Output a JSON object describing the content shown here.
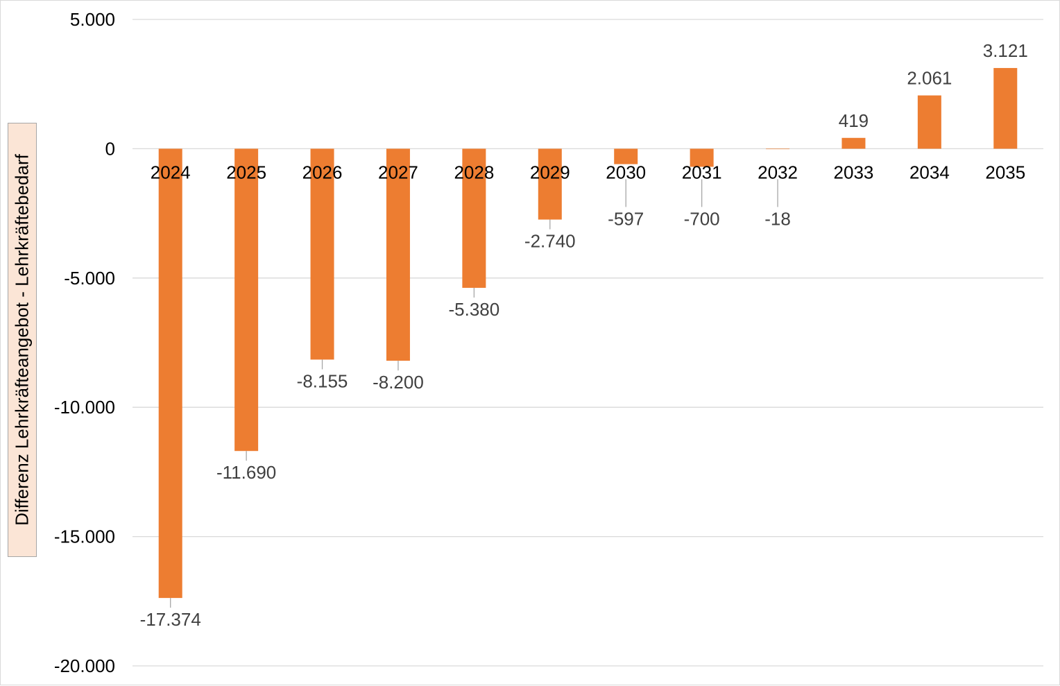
{
  "chart_data": {
    "type": "bar",
    "categories": [
      "2024",
      "2025",
      "2026",
      "2027",
      "2028",
      "2029",
      "2030",
      "2031",
      "2032",
      "2033",
      "2034",
      "2035"
    ],
    "values": [
      -17374,
      -11690,
      -8155,
      -8200,
      -5380,
      -2740,
      -597,
      -700,
      -18,
      419,
      2061,
      3121
    ],
    "data_labels": [
      "-17.374",
      "-11.690",
      "-8.155",
      "-8.200",
      "-5.380",
      "-2.740",
      "-597",
      "-700",
      "-18",
      "419",
      "2.061",
      "3.121"
    ],
    "ylabel": "Differenz Lehrkräfteangebot  - Lehrkräftebedarf",
    "ylim": [
      -20000,
      5000
    ],
    "yticks": [
      5000,
      0,
      -5000,
      -10000,
      -15000,
      -20000
    ],
    "ytick_labels": [
      "5.000",
      "0",
      "-5.000",
      "-10.000",
      "-15.000",
      "-20.000"
    ],
    "grid": true,
    "legend": "none",
    "colors": {
      "bar": "#ed7d31",
      "grid": "#d9d9d9",
      "label_box": "#fbe5d6"
    }
  }
}
